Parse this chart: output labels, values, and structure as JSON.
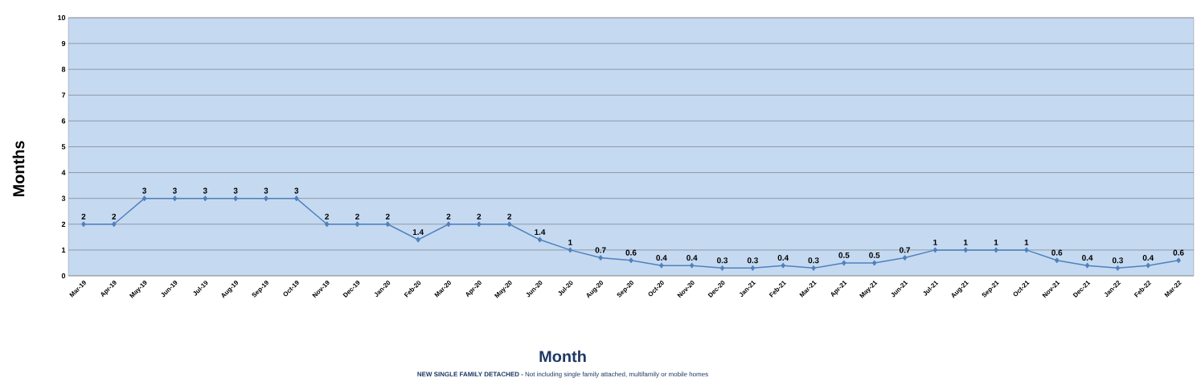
{
  "chart_data": {
    "type": "line",
    "xlabel": "Month",
    "ylabel": "Months",
    "annotations": [
      "**NEW SINGLE FAMILY DETACHED -** Not including single family attached, multifamily or mobile homes"
    ],
    "categories": [
      "Mar-19",
      "Apr-19",
      "May-19",
      "Jun-19",
      "Jul-19",
      "Aug-19",
      "Sep-19",
      "Oct-19",
      "Nov-19",
      "Dec-19",
      "Jan-20",
      "Feb-20",
      "Mar-20",
      "Apr-20",
      "May-20",
      "Jun-20",
      "Jul-20",
      "Aug-20",
      "Sep-20",
      "Oct-20",
      "Nov-20",
      "Dec-20",
      "Jan-21",
      "Feb-21",
      "Mar-21",
      "Apr-21",
      "May-21",
      "Jun-21",
      "Jul-21",
      "Aug-21",
      "Sep-21",
      "Oct-21",
      "Nov-21",
      "Dec-21",
      "Jan-22",
      "Feb-22",
      "Mar-22"
    ],
    "values": [
      2,
      2,
      3,
      3,
      3,
      3,
      3,
      3,
      2,
      2,
      2,
      1.4,
      2,
      2,
      2,
      1.4,
      1,
      0.7,
      0.6,
      0.4,
      0.4,
      0.3,
      0.3,
      0.4,
      0.3,
      0.5,
      0.5,
      0.7,
      1,
      1,
      1,
      1,
      0.6,
      0.4,
      0.3,
      0.4,
      0.6
    ],
    "color": "#4f81bd",
    "ylim": [
      0,
      10
    ],
    "yticks": [
      0,
      1,
      2,
      3,
      4,
      5,
      6,
      7,
      8,
      9,
      10
    ],
    "grid": "y",
    "marker": "diamond",
    "line_style": "solid",
    "data_labels": true
  }
}
